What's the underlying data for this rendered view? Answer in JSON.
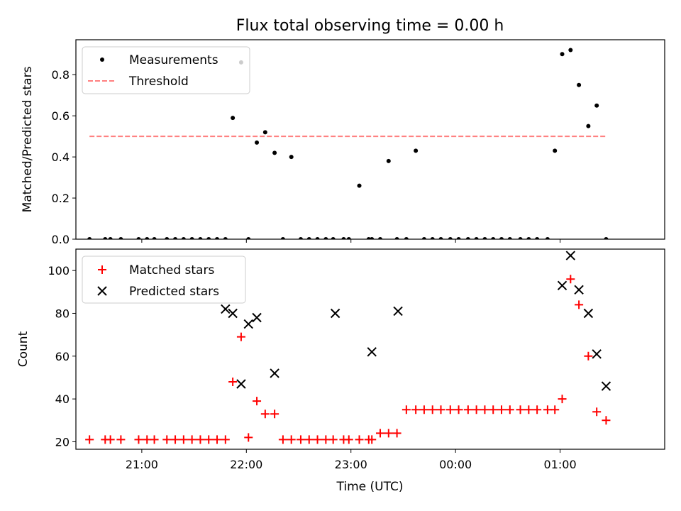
{
  "title": "Flux total observing time = 0.00 h",
  "xlabel": "Time (UTC)",
  "x_ticks": [
    {
      "x": 21.0,
      "label": "21:00"
    },
    {
      "x": 22.0,
      "label": "22:00"
    },
    {
      "x": 23.0,
      "label": "23:00"
    },
    {
      "x": 24.0,
      "label": "00:00"
    },
    {
      "x": 25.0,
      "label": "01:00"
    }
  ],
  "colors": {
    "measurements": "#000000",
    "threshold": "#ff7f7f",
    "matched": "#ff0000",
    "predicted": "#000000"
  },
  "chart_data": [
    {
      "type": "scatter",
      "ylabel": "Matched/Predicted stars",
      "xlim": [
        20.37,
        26.0
      ],
      "ylim": [
        0,
        0.97
      ],
      "y_ticks": [
        0.0,
        0.2,
        0.4,
        0.6,
        0.8
      ],
      "legend": "upper left",
      "threshold": {
        "name": "Threshold",
        "value": 0.5,
        "x": [
          20.5,
          25.45
        ]
      },
      "series": [
        {
          "name": "Measurements",
          "x": [
            20.5,
            20.65,
            20.7,
            20.8,
            20.97,
            21.05,
            21.12,
            21.24,
            21.32,
            21.4,
            21.48,
            21.56,
            21.64,
            21.72,
            21.8,
            21.87,
            21.95,
            22.02,
            22.1,
            22.18,
            22.27,
            22.35,
            22.43,
            22.52,
            22.6,
            22.68,
            22.76,
            22.83,
            22.93,
            22.98,
            23.08,
            23.17,
            23.2,
            23.28,
            23.36,
            23.44,
            23.53,
            23.62,
            23.7,
            23.78,
            23.86,
            23.95,
            24.03,
            24.12,
            24.2,
            24.28,
            24.36,
            24.44,
            24.52,
            24.62,
            24.7,
            24.78,
            24.88,
            24.95,
            25.02,
            25.1,
            25.18,
            25.27,
            25.35,
            25.44
          ],
          "y": [
            0,
            0,
            0,
            0,
            0,
            0,
            0,
            0,
            0,
            0,
            0,
            0,
            0,
            0,
            0,
            0.59,
            0.86,
            0,
            0.47,
            0.52,
            0.42,
            0,
            0.4,
            0,
            0,
            0,
            0,
            0,
            0,
            0,
            0.26,
            0,
            0,
            0,
            0.38,
            0,
            0,
            0.43,
            0,
            0,
            0,
            0,
            0,
            0,
            0,
            0,
            0,
            0,
            0,
            0,
            0,
            0,
            0,
            0.43,
            0.9,
            0.92,
            0.75,
            0.55,
            0.65,
            0
          ]
        }
      ]
    },
    {
      "type": "scatter",
      "ylabel": "Count",
      "xlim": [
        20.37,
        26.0
      ],
      "ylim": [
        16.5,
        110
      ],
      "y_ticks": [
        20,
        40,
        60,
        80,
        100
      ],
      "legend": "upper left",
      "series": [
        {
          "name": "Matched stars",
          "x": [
            20.5,
            20.65,
            20.7,
            20.8,
            20.97,
            21.05,
            21.12,
            21.24,
            21.32,
            21.4,
            21.48,
            21.56,
            21.64,
            21.72,
            21.8,
            21.87,
            21.95,
            22.02,
            22.1,
            22.18,
            22.27,
            22.35,
            22.43,
            22.52,
            22.6,
            22.68,
            22.76,
            22.83,
            22.93,
            22.98,
            23.08,
            23.17,
            23.2,
            23.28,
            23.36,
            23.44,
            23.53,
            23.62,
            23.7,
            23.78,
            23.86,
            23.95,
            24.03,
            24.12,
            24.2,
            24.28,
            24.36,
            24.44,
            24.52,
            24.62,
            24.7,
            24.78,
            24.88,
            24.95,
            25.02,
            25.1,
            25.18,
            25.27,
            25.35,
            25.44
          ],
          "y": [
            21,
            21,
            21,
            21,
            21,
            21,
            21,
            21,
            21,
            21,
            21,
            21,
            21,
            21,
            21,
            48,
            69,
            22,
            39,
            33,
            33,
            21,
            21,
            21,
            21,
            21,
            21,
            21,
            21,
            21,
            21,
            21,
            21,
            24,
            24,
            24,
            35,
            35,
            35,
            35,
            35,
            35,
            35,
            35,
            35,
            35,
            35,
            35,
            35,
            35,
            35,
            35,
            35,
            35,
            40,
            96,
            84,
            60,
            34,
            30
          ]
        },
        {
          "name": "Predicted stars",
          "x": [
            21.8,
            21.87,
            21.95,
            22.02,
            22.1,
            22.27,
            22.85,
            23.2,
            23.45,
            25.02,
            25.1,
            25.18,
            25.27,
            25.35,
            25.44
          ],
          "y": [
            82,
            80,
            47,
            75,
            78,
            52,
            80,
            62,
            81,
            93,
            107,
            91,
            80,
            61,
            46
          ]
        }
      ]
    }
  ]
}
